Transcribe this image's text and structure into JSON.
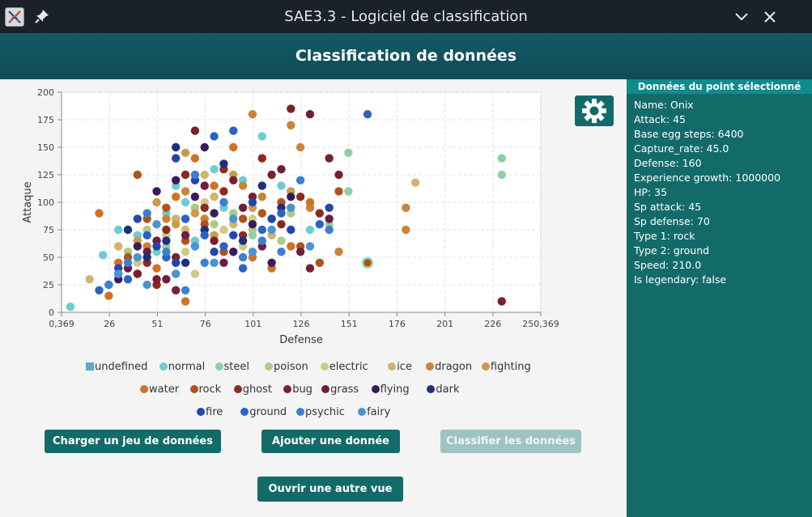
{
  "window": {
    "title": "SAE3.3 - Logiciel de classification"
  },
  "header": {
    "title": "Classification de données"
  },
  "chart_data": {
    "type": "scatter",
    "xlabel": "Defense",
    "ylabel": "Attaque",
    "xlim": [
      0.369,
      250.369
    ],
    "ylim": [
      0,
      200
    ],
    "x_ticks": [
      "0,369",
      "26",
      "51",
      "76",
      "101",
      "126",
      "151",
      "176",
      "201",
      "226",
      "250,369"
    ],
    "y_ticks": [
      "0",
      "25",
      "50",
      "75",
      "100",
      "125",
      "150",
      "175",
      "200"
    ],
    "grid": true,
    "selected_point": {
      "x": 160,
      "y": 45
    },
    "series": [
      {
        "name": "normal",
        "color": "#6ccdd0",
        "points": [
          [
            5,
            5
          ],
          [
            22,
            52
          ],
          [
            30,
            75
          ],
          [
            40,
            70
          ],
          [
            55,
            90
          ],
          [
            60,
            115
          ],
          [
            70,
            65
          ],
          [
            80,
            130
          ],
          [
            85,
            95
          ],
          [
            95,
            120
          ],
          [
            105,
            160
          ],
          [
            115,
            115
          ],
          [
            130,
            75
          ],
          [
            30,
            60
          ],
          [
            50,
            55
          ],
          [
            65,
            100
          ]
        ]
      },
      {
        "name": "steel",
        "color": "#8ecfa6",
        "points": [
          [
            150,
            145
          ],
          [
            150,
            110
          ],
          [
            230,
            140
          ],
          [
            230,
            125
          ],
          [
            140,
            80
          ],
          [
            110,
            40
          ],
          [
            100,
            70
          ]
        ]
      },
      {
        "name": "poison",
        "color": "#a9cc86",
        "points": [
          [
            45,
            75
          ],
          [
            60,
            85
          ],
          [
            70,
            95
          ],
          [
            80,
            80
          ],
          [
            90,
            90
          ],
          [
            100,
            75
          ],
          [
            115,
            65
          ],
          [
            120,
            90
          ],
          [
            55,
            60
          ],
          [
            35,
            55
          ]
        ]
      },
      {
        "name": "electric",
        "color": "#cfcb86",
        "points": [
          [
            40,
            45
          ],
          [
            55,
            70
          ],
          [
            65,
            55
          ],
          [
            75,
            100
          ],
          [
            85,
            75
          ],
          [
            95,
            60
          ],
          [
            70,
            35
          ],
          [
            100,
            85
          ]
        ]
      },
      {
        "name": "ice",
        "color": "#d1b56b",
        "points": [
          [
            15,
            30
          ],
          [
            30,
            60
          ],
          [
            50,
            65
          ],
          [
            60,
            85
          ],
          [
            80,
            105
          ],
          [
            90,
            80
          ],
          [
            110,
            70
          ],
          [
            185,
            118
          ],
          [
            75,
            125
          ],
          [
            65,
            75
          ]
        ]
      },
      {
        "name": "dragon",
        "color": "#c98438",
        "points": [
          [
            45,
            60
          ],
          [
            55,
            85
          ],
          [
            65,
            110
          ],
          [
            75,
            85
          ],
          [
            85,
            100
          ],
          [
            95,
            115
          ],
          [
            100,
            180
          ],
          [
            105,
            105
          ],
          [
            120,
            170
          ],
          [
            125,
            150
          ],
          [
            130,
            95
          ],
          [
            145,
            55
          ],
          [
            180,
            95
          ],
          [
            180,
            75
          ]
        ]
      },
      {
        "name": "fighting",
        "color": "#cc9a48",
        "points": [
          [
            40,
            65
          ],
          [
            50,
            100
          ],
          [
            60,
            80
          ],
          [
            70,
            90
          ],
          [
            80,
            70
          ],
          [
            90,
            125
          ],
          [
            100,
            95
          ],
          [
            110,
            85
          ],
          [
            120,
            110
          ],
          [
            65,
            145
          ]
        ]
      },
      {
        "name": "water",
        "color": "#d07125",
        "points": [
          [
            20,
            90
          ],
          [
            30,
            45
          ],
          [
            40,
            35
          ],
          [
            50,
            40
          ],
          [
            60,
            105
          ],
          [
            70,
            140
          ],
          [
            80,
            115
          ],
          [
            90,
            150
          ],
          [
            100,
            50
          ],
          [
            110,
            40
          ],
          [
            130,
            100
          ],
          [
            160,
            45
          ],
          [
            25,
            15
          ],
          [
            65,
            10
          ],
          [
            120,
            60
          ]
        ]
      },
      {
        "name": "rock",
        "color": "#b1521d",
        "points": [
          [
            35,
            50
          ],
          [
            45,
            85
          ],
          [
            55,
            95
          ],
          [
            65,
            65
          ],
          [
            75,
            80
          ],
          [
            85,
            55
          ],
          [
            95,
            85
          ],
          [
            105,
            90
          ],
          [
            115,
            100
          ],
          [
            125,
            60
          ],
          [
            135,
            45
          ],
          [
            145,
            110
          ],
          [
            40,
            125
          ],
          [
            70,
            60
          ]
        ]
      },
      {
        "name": "ghost",
        "color": "#8b2b1f",
        "points": [
          [
            45,
            45
          ],
          [
            55,
            75
          ],
          [
            65,
            125
          ],
          [
            75,
            95
          ],
          [
            85,
            110
          ],
          [
            95,
            70
          ],
          [
            105,
            140
          ],
          [
            115,
            80
          ],
          [
            125,
            105
          ],
          [
            135,
            90
          ],
          [
            50,
            25
          ],
          [
            85,
            130
          ]
        ]
      },
      {
        "name": "bug",
        "color": "#7a1f2c",
        "points": [
          [
            40,
            35
          ],
          [
            50,
            30
          ],
          [
            60,
            50
          ],
          [
            70,
            165
          ],
          [
            80,
            65
          ],
          [
            90,
            120
          ],
          [
            100,
            105
          ],
          [
            110,
            125
          ],
          [
            120,
            185
          ],
          [
            130,
            40
          ],
          [
            140,
            140
          ],
          [
            145,
            125
          ],
          [
            230,
            10
          ],
          [
            60,
            20
          ]
        ]
      },
      {
        "name": "grass",
        "color": "#6c1d43",
        "points": [
          [
            35,
            40
          ],
          [
            45,
            55
          ],
          [
            55,
            30
          ],
          [
            65,
            70
          ],
          [
            75,
            115
          ],
          [
            85,
            45
          ],
          [
            95,
            95
          ],
          [
            105,
            60
          ],
          [
            115,
            130
          ],
          [
            125,
            55
          ],
          [
            130,
            180
          ],
          [
            140,
            85
          ],
          [
            50,
            65
          ]
        ]
      },
      {
        "name": "flying",
        "color": "#3b1a5c",
        "points": [
          [
            30,
            30
          ],
          [
            40,
            60
          ],
          [
            50,
            110
          ],
          [
            60,
            120
          ],
          [
            70,
            105
          ],
          [
            80,
            90
          ],
          [
            90,
            55
          ],
          [
            100,
            80
          ],
          [
            110,
            45
          ],
          [
            120,
            105
          ],
          [
            75,
            150
          ]
        ]
      },
      {
        "name": "dark",
        "color": "#1f2f7e",
        "points": [
          [
            25,
            25
          ],
          [
            35,
            75
          ],
          [
            45,
            50
          ],
          [
            55,
            65
          ],
          [
            65,
            45
          ],
          [
            75,
            75
          ],
          [
            85,
            135
          ],
          [
            95,
            65
          ],
          [
            105,
            115
          ],
          [
            115,
            95
          ],
          [
            60,
            150
          ],
          [
            30,
            35
          ]
        ]
      },
      {
        "name": "fire",
        "color": "#2346a9",
        "points": [
          [
            30,
            40
          ],
          [
            40,
            85
          ],
          [
            50,
            60
          ],
          [
            60,
            45
          ],
          [
            70,
            120
          ],
          [
            80,
            55
          ],
          [
            90,
            70
          ],
          [
            100,
            100
          ],
          [
            110,
            85
          ],
          [
            120,
            75
          ],
          [
            140,
            95
          ],
          [
            60,
            140
          ]
        ]
      },
      {
        "name": "ground",
        "color": "#2c63c2",
        "points": [
          [
            20,
            20
          ],
          [
            35,
            30
          ],
          [
            45,
            70
          ],
          [
            55,
            50
          ],
          [
            65,
            85
          ],
          [
            75,
            70
          ],
          [
            85,
            60
          ],
          [
            95,
            40
          ],
          [
            105,
            75
          ],
          [
            115,
            90
          ],
          [
            135,
            80
          ],
          [
            160,
            180
          ],
          [
            90,
            165
          ],
          [
            80,
            160
          ]
        ]
      },
      {
        "name": "psychic",
        "color": "#3d7fcf",
        "points": [
          [
            25,
            25
          ],
          [
            35,
            45
          ],
          [
            45,
            90
          ],
          [
            55,
            55
          ],
          [
            65,
            20
          ],
          [
            75,
            45
          ],
          [
            85,
            100
          ],
          [
            95,
            50
          ],
          [
            105,
            65
          ],
          [
            115,
            55
          ],
          [
            125,
            120
          ],
          [
            140,
            75
          ],
          [
            70,
            125
          ]
        ]
      },
      {
        "name": "fairy",
        "color": "#4b93d2",
        "points": [
          [
            30,
            35
          ],
          [
            40,
            50
          ],
          [
            50,
            80
          ],
          [
            60,
            35
          ],
          [
            70,
            60
          ],
          [
            80,
            45
          ],
          [
            90,
            85
          ],
          [
            100,
            55
          ],
          [
            110,
            75
          ],
          [
            120,
            95
          ],
          [
            130,
            60
          ],
          [
            45,
            25
          ]
        ]
      }
    ]
  },
  "legend": {
    "rows": [
      [
        {
          "label": "undefined",
          "color": "#5aaac8",
          "shape": "square"
        },
        {
          "label": "normal",
          "color": "#6ccdd0",
          "shape": "circle"
        },
        {
          "label": "steel",
          "color": "#8ecfa6",
          "shape": "circle"
        },
        {
          "label": "poison",
          "color": "#a9cc86",
          "shape": "circle"
        },
        {
          "label": "electric",
          "color": "#cfcb86",
          "shape": "circle"
        },
        {
          "label": "ice",
          "color": "#d1b56b",
          "shape": "circle"
        },
        {
          "label": "dragon",
          "color": "#c98438",
          "shape": "circle"
        },
        {
          "label": "fighting",
          "color": "#cc9a48",
          "shape": "circle"
        }
      ],
      [
        {
          "label": "water",
          "color": "#d07125",
          "shape": "circle"
        },
        {
          "label": "rock",
          "color": "#b1521d",
          "shape": "circle"
        },
        {
          "label": "ghost",
          "color": "#8b2b1f",
          "shape": "circle"
        },
        {
          "label": "bug",
          "color": "#7a1f2c",
          "shape": "circle"
        },
        {
          "label": "grass",
          "color": "#6c1d43",
          "shape": "circle"
        },
        {
          "label": "flying",
          "color": "#3b1a5c",
          "shape": "circle"
        },
        {
          "label": "dark",
          "color": "#1f2f7e",
          "shape": "circle"
        }
      ],
      [
        {
          "label": "fire",
          "color": "#2346a9",
          "shape": "circle"
        },
        {
          "label": "ground",
          "color": "#2c63c2",
          "shape": "circle"
        },
        {
          "label": "psychic",
          "color": "#3d7fcf",
          "shape": "circle"
        },
        {
          "label": "fairy",
          "color": "#4b93d2",
          "shape": "circle"
        }
      ]
    ]
  },
  "buttons": {
    "load": "Charger un jeu de données",
    "add": "Ajouter une donnée",
    "classify": "Classifier les données",
    "open_view": "Ouvrir une autre vue"
  },
  "panel": {
    "title": "Données du point sélectionné",
    "lines": [
      "Name: Onix",
      "Attack: 45",
      "Base egg steps: 6400",
      "Capture_rate: 45.0",
      "Defense: 160",
      "Experience growth: 1000000",
      "HP: 35",
      "Sp attack: 45",
      "Sp defense: 70",
      "Type 1: rock",
      "Type 2: ground",
      "Speed: 210.0",
      "Is legendary: false"
    ]
  },
  "colors": {
    "accent": "#136b69",
    "header": "#135a64",
    "panel_head": "#0f8b8d",
    "titlebar": "#1b2129"
  },
  "icons": {
    "app": "app-x-icon",
    "pin": "pin-icon",
    "minimize": "chevron-down-icon",
    "close": "close-icon",
    "settings": "gear-icon"
  }
}
